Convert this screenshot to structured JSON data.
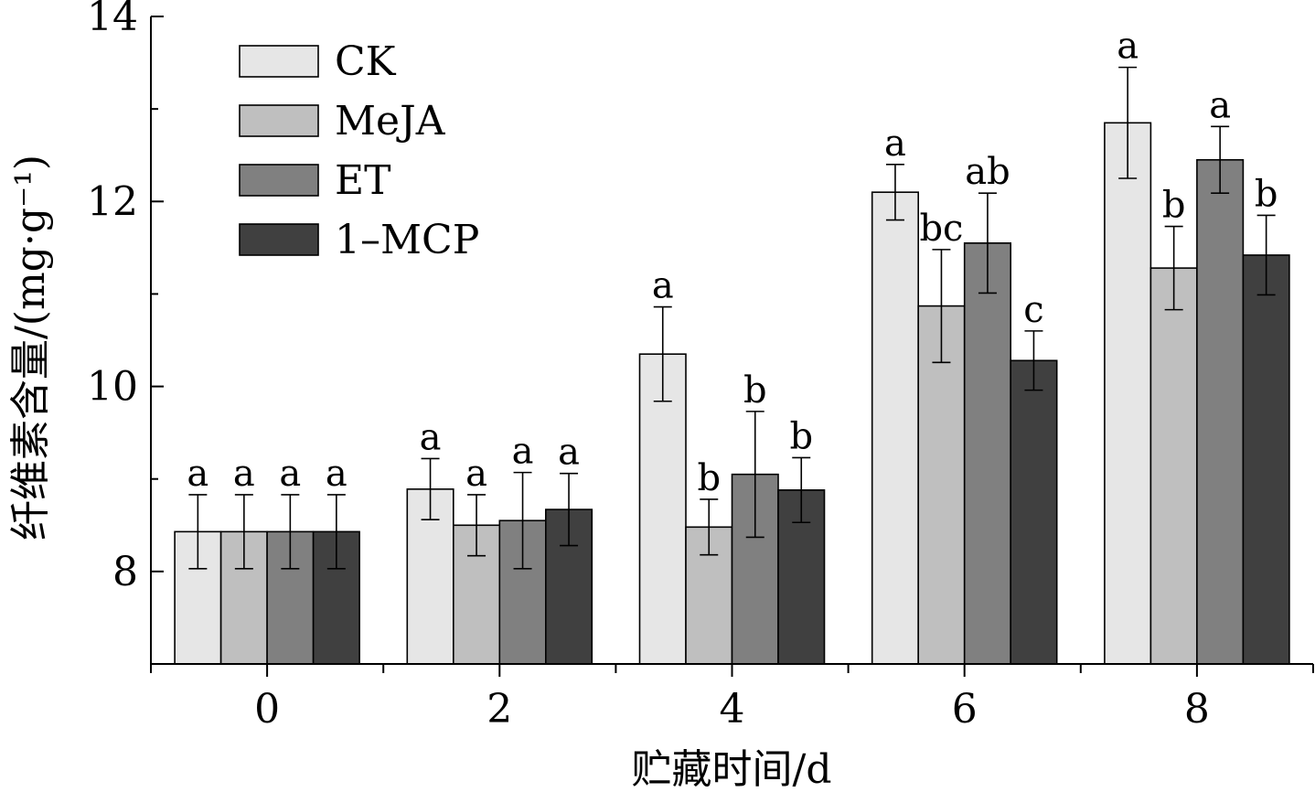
{
  "chart_data": {
    "type": "bar",
    "title": "",
    "xlabel": "贮藏时间/d",
    "ylabel": "纤维素含量/(mg·g⁻¹)",
    "ylim": [
      7,
      14
    ],
    "yticks": [
      "8",
      "10",
      "12",
      "14"
    ],
    "categories": [
      "0",
      "2",
      "4",
      "6",
      "8"
    ],
    "grid": false,
    "legend_position": "top-left",
    "series": [
      {
        "name": "CK",
        "color": "#e6e6e6",
        "values": [
          8.43,
          8.89,
          10.35,
          12.1,
          12.85
        ],
        "errors": [
          0.4,
          0.33,
          0.51,
          0.3,
          0.6
        ],
        "labels": [
          "a",
          "a",
          "a",
          "a",
          "a"
        ]
      },
      {
        "name": "MeJA",
        "color": "#bfbfbf",
        "values": [
          8.43,
          8.5,
          8.48,
          10.87,
          11.28
        ],
        "errors": [
          0.4,
          0.33,
          0.3,
          0.61,
          0.45
        ],
        "labels": [
          "a",
          "a",
          "b",
          "bc",
          "b"
        ]
      },
      {
        "name": "ET",
        "color": "#808080",
        "values": [
          8.43,
          8.55,
          9.05,
          11.55,
          12.45
        ],
        "errors": [
          0.4,
          0.52,
          0.68,
          0.54,
          0.36
        ],
        "labels": [
          "a",
          "a",
          "b",
          "ab",
          "a"
        ]
      },
      {
        "name": "1–MCP",
        "color": "#404040",
        "values": [
          8.43,
          8.67,
          8.88,
          10.28,
          11.42
        ],
        "errors": [
          0.4,
          0.39,
          0.35,
          0.32,
          0.43
        ],
        "labels": [
          "a",
          "a",
          "b",
          "c",
          "b"
        ]
      }
    ]
  }
}
